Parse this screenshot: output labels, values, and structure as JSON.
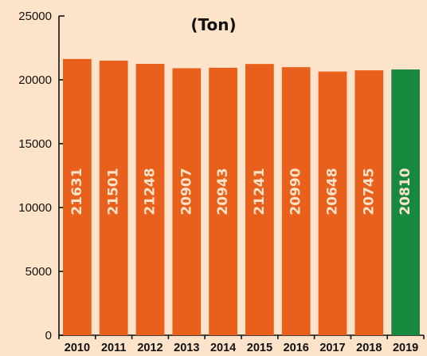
{
  "chart_data": {
    "type": "bar",
    "title": "(Ton)",
    "categories": [
      "2010",
      "2011",
      "2012",
      "2013",
      "2014",
      "2015",
      "2016",
      "2017",
      "2018",
      "2019"
    ],
    "values": [
      21631,
      21501,
      21248,
      20907,
      20943,
      21241,
      20990,
      20648,
      20745,
      20810
    ],
    "data_labels": [
      "21631",
      "21501",
      "21248",
      "20907",
      "20943",
      "21241",
      "20990",
      "20648",
      "20745",
      "20810"
    ],
    "ylim": [
      0,
      25000
    ],
    "yticks": [
      0,
      5000,
      10000,
      15000,
      20000,
      25000
    ],
    "ytick_labels": [
      "0",
      "5000",
      "10000",
      "15000",
      "20000",
      "25000"
    ],
    "xlabel": "",
    "ylabel": "",
    "grid": false,
    "colors": {
      "bar": "#e8601c",
      "highlight_bar": "#17893f",
      "background": "#fde3c9",
      "axis": "#111111",
      "data_label": "#fde3c9"
    },
    "highlight_category": "2019"
  }
}
